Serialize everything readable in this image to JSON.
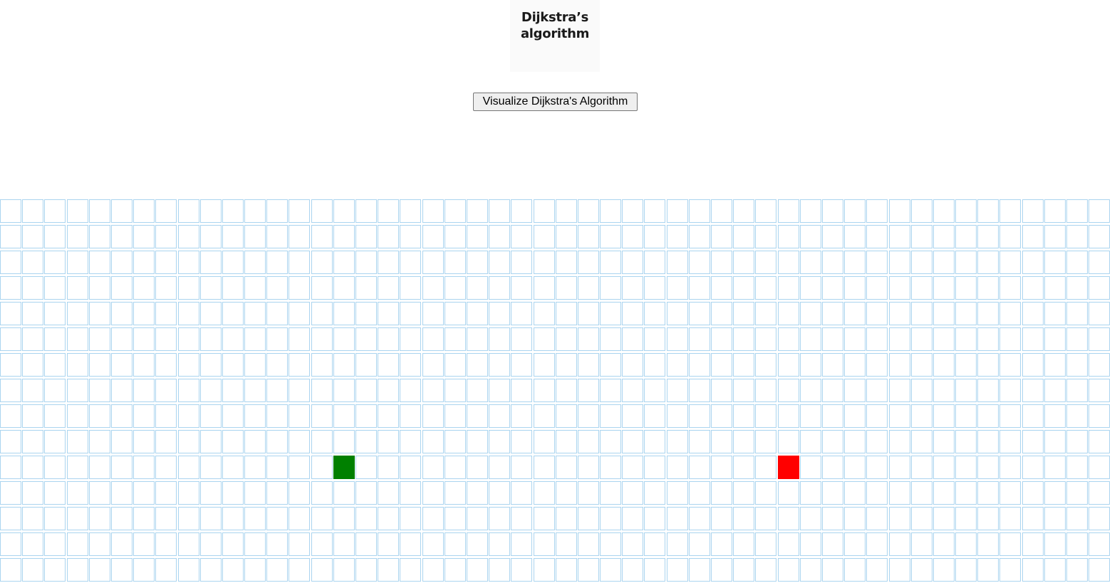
{
  "logo": {
    "line1": "Dijkstra’s",
    "line2": "algorithm"
  },
  "controls": {
    "visualize_label": "Visualize Dijkstra's Algorithm"
  },
  "grid": {
    "rows": 15,
    "cols": 50,
    "start_node": {
      "row": 10,
      "col": 15
    },
    "end_node": {
      "row": 10,
      "col": 35
    },
    "colors": {
      "start": "#008000",
      "end": "#ff0000",
      "cell_border": "#aad4ef"
    }
  }
}
